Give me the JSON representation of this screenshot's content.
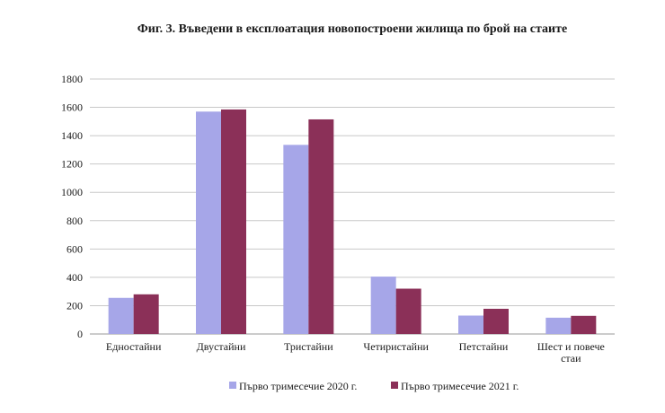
{
  "chart_data": {
    "type": "bar",
    "title": "Фиг. 3. Въведени в експлоатация новопостроени жилища по брой на стаите",
    "xlabel": "",
    "ylabel": "",
    "ylim": [
      0,
      1800
    ],
    "yticks": [
      0,
      200,
      400,
      600,
      800,
      1000,
      1200,
      1400,
      1600,
      1800
    ],
    "grid": true,
    "legend_position": "bottom",
    "categories": [
      [
        "Едностайни"
      ],
      [
        "Двустайни"
      ],
      [
        "Тристайни"
      ],
      [
        "Четиристайни"
      ],
      [
        "Петстайни"
      ],
      [
        "Шест и повече",
        "стаи"
      ]
    ],
    "series": [
      {
        "name": "Първо тримесечие 2020 г.",
        "color": "#a6a6e8",
        "values": [
          255,
          1570,
          1335,
          405,
          130,
          115
        ]
      },
      {
        "name": "Първо тримесечие 2021 г.",
        "color": "#8b3058",
        "values": [
          280,
          1585,
          1515,
          320,
          178,
          128
        ]
      }
    ]
  }
}
